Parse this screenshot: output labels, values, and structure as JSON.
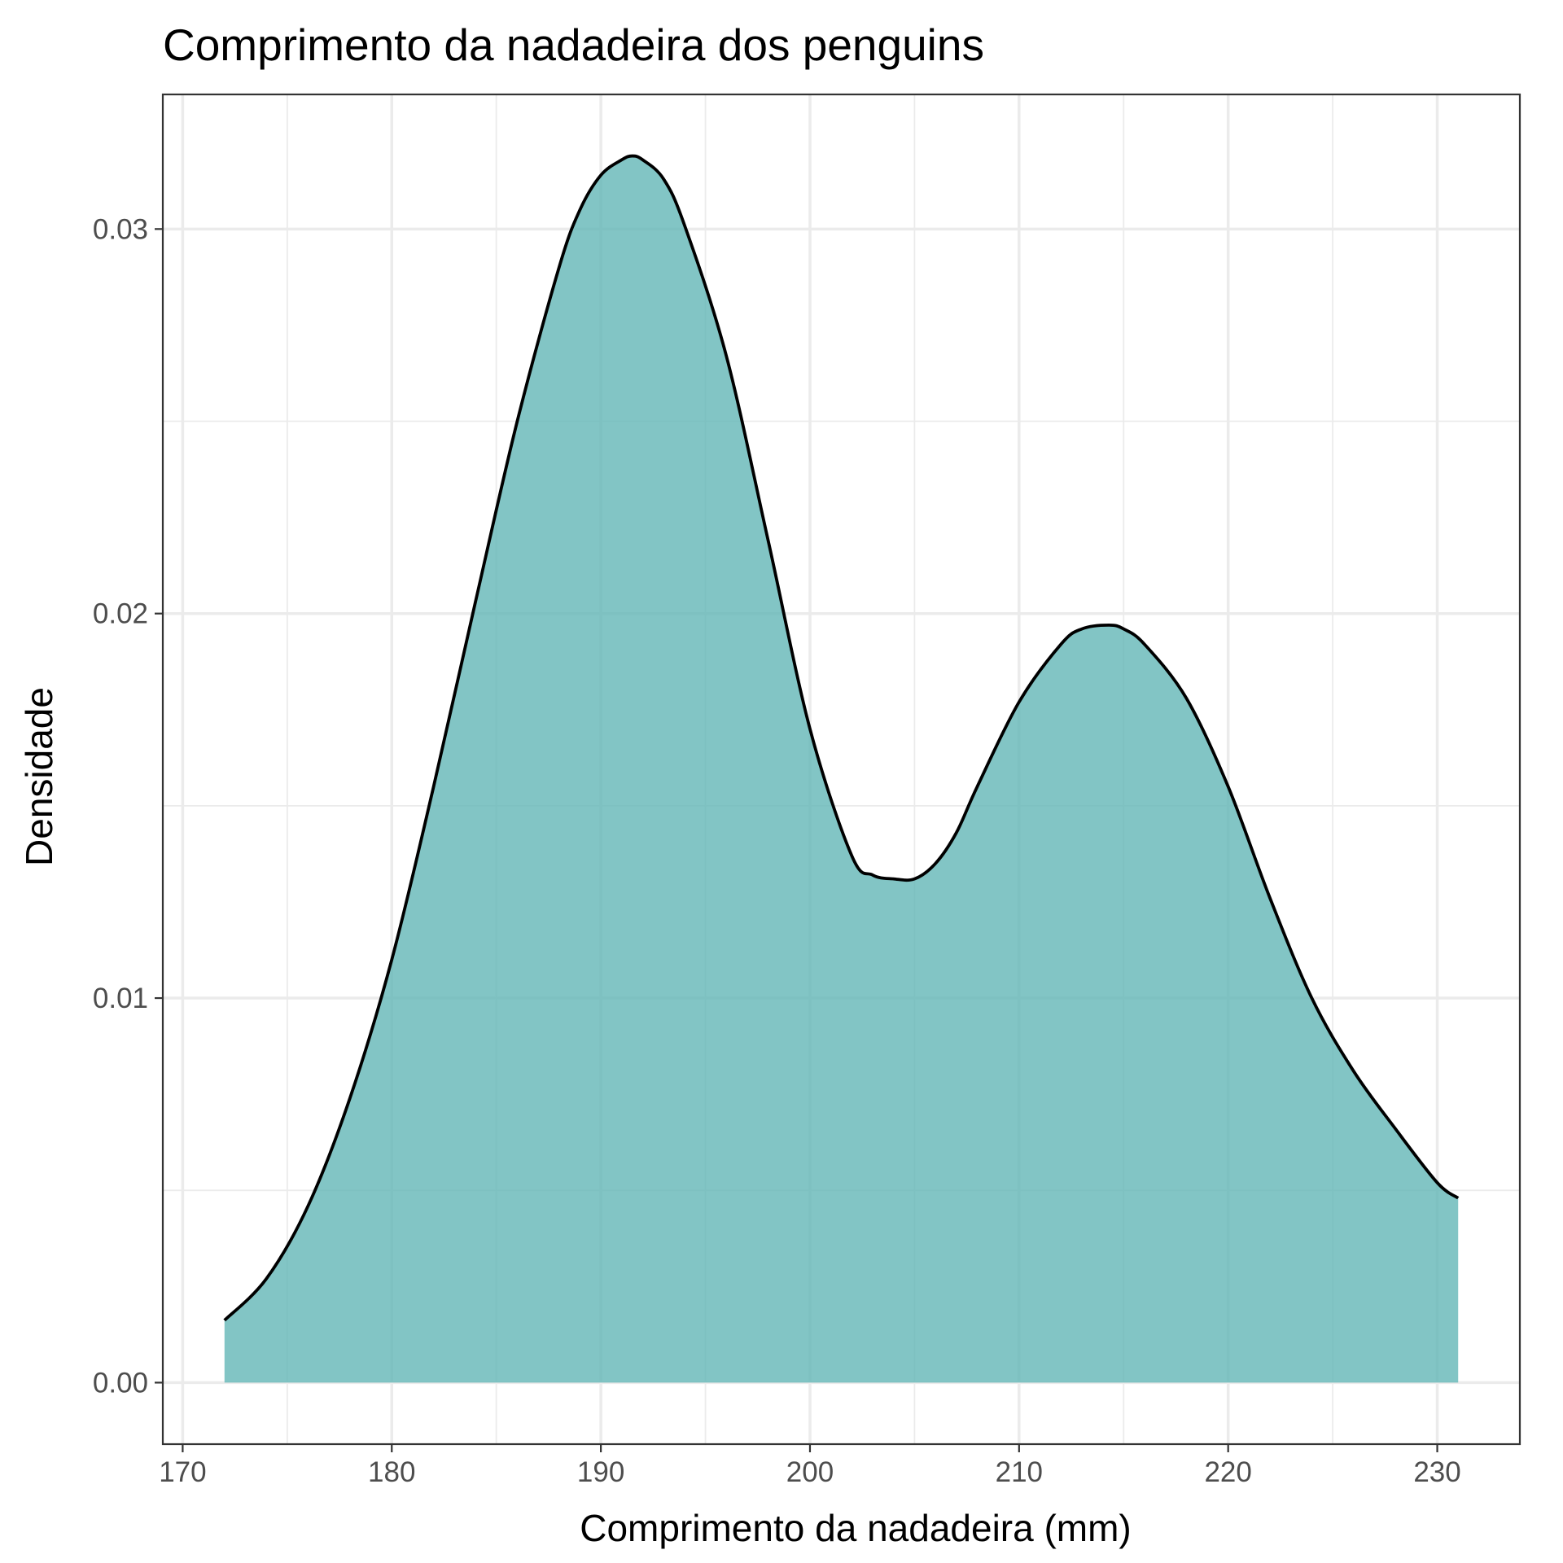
{
  "chart_data": {
    "type": "area",
    "title": "Comprimento da nadadeira dos penguins",
    "xlabel": "Comprimento da nadadeira (mm)",
    "ylabel": "Densidade",
    "xlim": [
      169.05,
      233.95
    ],
    "ylim": [
      -0.0016,
      0.0335
    ],
    "x_ticks": [
      170,
      180,
      190,
      200,
      210,
      220,
      230
    ],
    "x_tick_labels": [
      "170",
      "180",
      "190",
      "200",
      "210",
      "220",
      "230"
    ],
    "y_ticks": [
      0.0,
      0.01,
      0.02,
      0.03
    ],
    "y_tick_labels": [
      "0.00",
      "0.01",
      "0.02",
      "0.03"
    ],
    "grid": true,
    "fill_color": "#5fb5b5",
    "fill_opacity": 0.78,
    "line_color": "#000000",
    "series": [
      {
        "x": [
          172,
          174,
          176,
          178,
          180,
          182,
          184,
          186,
          188,
          189,
          190,
          191,
          191.5,
          192,
          193,
          194,
          196,
          198,
          200,
          202,
          203,
          204,
          205,
          206,
          207,
          208,
          210,
          212,
          213,
          214.3,
          215,
          216,
          218,
          220,
          222,
          224,
          226,
          228,
          230,
          231
        ],
        "y": [
          0.00162,
          0.0027,
          0.0046,
          0.0074,
          0.011,
          0.0155,
          0.0203,
          0.025,
          0.029,
          0.0305,
          0.0314,
          0.0318,
          0.0319,
          0.0318,
          0.0313,
          0.0301,
          0.0267,
          0.0219,
          0.017,
          0.0137,
          0.0132,
          0.0131,
          0.0131,
          0.0135,
          0.0143,
          0.0155,
          0.0177,
          0.0192,
          0.0196,
          0.0197,
          0.0196,
          0.0192,
          0.0178,
          0.0155,
          0.0126,
          0.01,
          0.0081,
          0.0066,
          0.0052,
          0.0048
        ]
      }
    ]
  }
}
